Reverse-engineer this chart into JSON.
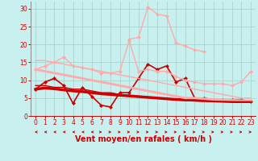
{
  "xlabel": "Vent moyen/en rafales ( km/h )",
  "xlim": [
    -0.5,
    23.5
  ],
  "ylim": [
    0,
    32
  ],
  "yticks": [
    0,
    5,
    10,
    15,
    20,
    25,
    30
  ],
  "xticks": [
    0,
    1,
    2,
    3,
    4,
    5,
    6,
    7,
    8,
    9,
    10,
    11,
    12,
    13,
    14,
    15,
    16,
    17,
    18,
    19,
    20,
    21,
    22,
    23
  ],
  "bg_color": "#c8f0ee",
  "grid_color": "#aad4d0",
  "lines": [
    {
      "x": [
        0,
        1,
        2,
        3,
        4,
        5,
        6,
        7,
        8,
        9,
        10,
        11,
        12,
        13,
        14,
        15,
        16,
        17,
        18,
        19,
        20,
        21,
        22,
        23
      ],
      "y": [
        7.5,
        9.5,
        10.5,
        8.5,
        3.5,
        8.0,
        5.5,
        3.0,
        2.5,
        6.5,
        6.5,
        10.5,
        14.5,
        13.0,
        14.0,
        9.5,
        10.5,
        5.0,
        5.0,
        4.5,
        4.5,
        4.5,
        4.5,
        4.0
      ],
      "color": "#cc0000",
      "lw": 1.2,
      "marker": "D",
      "ms": 2.0,
      "alpha": 1.0
    },
    {
      "x": [
        0,
        1,
        2,
        3,
        4,
        5,
        6,
        7,
        8,
        9,
        10,
        11,
        12,
        13,
        14,
        15,
        16,
        17,
        18,
        19,
        20,
        21,
        22,
        23
      ],
      "y": [
        13.0,
        14.0,
        15.0,
        16.5,
        14.0,
        13.5,
        13.0,
        12.0,
        12.0,
        12.5,
        21.0,
        12.5,
        13.0,
        12.5,
        12.5,
        11.0,
        10.0,
        9.5,
        9.0,
        9.0,
        9.0,
        8.5,
        9.5,
        12.5
      ],
      "color": "#ffaaaa",
      "lw": 1.0,
      "marker": "D",
      "ms": 2.0,
      "alpha": 1.0
    },
    {
      "x": [
        0,
        1,
        2,
        3,
        4,
        5,
        6,
        7,
        8,
        9,
        10,
        11,
        12,
        13,
        14,
        15,
        16,
        17,
        18,
        19,
        20,
        21,
        22,
        23
      ],
      "y": [
        15.5,
        15.5,
        15.0,
        14.5,
        14.0,
        13.5,
        13.0,
        12.5,
        12.0,
        11.5,
        11.0,
        10.5,
        10.0,
        9.5,
        9.0,
        8.5,
        8.0,
        7.5,
        7.0,
        6.5,
        6.0,
        5.5,
        5.0,
        5.0
      ],
      "color": "#ffaaaa",
      "lw": 1.0,
      "marker": null,
      "ms": 0,
      "alpha": 1.0
    },
    {
      "x": [
        0,
        1,
        2,
        3,
        4,
        5,
        6,
        7,
        8,
        9,
        10,
        11,
        12,
        13,
        14,
        15,
        16,
        17,
        18,
        19,
        20,
        21,
        22,
        23
      ],
      "y": [
        7.5,
        7.8,
        7.6,
        7.3,
        7.0,
        6.8,
        6.5,
        6.2,
        6.0,
        5.8,
        5.6,
        5.4,
        5.2,
        5.0,
        4.8,
        4.6,
        4.5,
        4.4,
        4.3,
        4.2,
        4.1,
        4.0,
        4.0,
        4.0
      ],
      "color": "#cc0000",
      "lw": 2.5,
      "marker": null,
      "ms": 0,
      "alpha": 1.0
    },
    {
      "x": [
        0,
        1,
        2,
        3,
        4,
        5,
        6,
        7,
        8,
        9,
        10,
        11,
        12,
        13,
        14,
        15,
        16,
        17,
        18,
        19,
        20,
        21,
        22,
        23
      ],
      "y": [
        13.0,
        12.5,
        12.0,
        11.5,
        11.0,
        10.5,
        10.0,
        9.5,
        9.0,
        8.5,
        8.0,
        7.5,
        7.0,
        6.5,
        6.0,
        5.5,
        5.0,
        5.0,
        4.8,
        4.6,
        4.5,
        4.4,
        4.3,
        4.2
      ],
      "color": "#ffaaaa",
      "lw": 2.0,
      "marker": null,
      "ms": 0,
      "alpha": 1.0
    },
    {
      "x": [
        0,
        1,
        2,
        3,
        4,
        5,
        6,
        7,
        8,
        9,
        10,
        11,
        12,
        13,
        14,
        15,
        16,
        17,
        18,
        19,
        20,
        21,
        22,
        23
      ],
      "y": [
        8.5,
        8.5,
        8.0,
        8.0,
        7.5,
        7.5,
        7.0,
        6.5,
        6.5,
        6.0,
        5.8,
        5.5,
        5.3,
        5.0,
        4.8,
        4.5,
        4.3,
        4.2,
        4.1,
        4.0,
        4.0,
        4.0,
        4.0,
        4.0
      ],
      "color": "#cc0000",
      "lw": 1.0,
      "marker": null,
      "ms": 0,
      "alpha": 1.0
    },
    {
      "x": [
        10,
        11,
        12,
        13,
        14,
        15,
        16,
        17,
        18
      ],
      "y": [
        21.5,
        22.0,
        30.5,
        28.5,
        28.0,
        20.5,
        19.5,
        18.5,
        18.0
      ],
      "color": "#ffaaaa",
      "lw": 1.0,
      "marker": "D",
      "ms": 2.0,
      "alpha": 1.0
    }
  ],
  "arrow_color": "#cc0000",
  "xlabel_color": "#cc0000",
  "xlabel_fontsize": 7,
  "tick_fontsize": 5.5,
  "tick_color": "#cc0000",
  "arrow_directions": [
    0,
    0,
    0,
    0,
    0,
    0,
    0,
    1,
    1,
    1,
    1,
    1,
    1,
    1,
    1,
    1,
    1,
    1,
    1,
    1,
    1,
    1,
    1,
    1
  ]
}
